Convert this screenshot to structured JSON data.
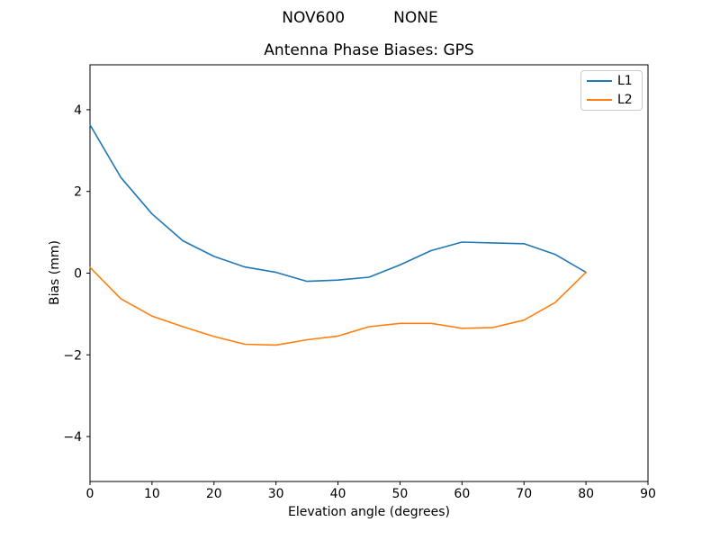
{
  "figure": {
    "suptitle": "NOV600          NONE"
  },
  "chart_data": {
    "type": "line",
    "title": "Antenna Phase Biases: GPS",
    "xlabel": "Elevation angle (degrees)",
    "ylabel": "Bias (mm)",
    "xlim": [
      0,
      90
    ],
    "ylim": [
      -5.1,
      5.1
    ],
    "xticks": [
      0,
      10,
      20,
      30,
      40,
      50,
      60,
      70,
      80,
      90
    ],
    "yticks": [
      -4,
      -2,
      0,
      2,
      4
    ],
    "grid": false,
    "legend_position": "upper right",
    "x": [
      0,
      5,
      10,
      15,
      20,
      25,
      30,
      35,
      40,
      45,
      50,
      55,
      60,
      65,
      70,
      75,
      80
    ],
    "series": [
      {
        "name": "L1",
        "color": "#1f77b4",
        "values": [
          3.63,
          2.34,
          1.45,
          0.79,
          0.41,
          0.15,
          0.02,
          -0.2,
          -0.17,
          -0.1,
          0.2,
          0.55,
          0.76,
          0.74,
          0.72,
          0.46,
          0.02
        ]
      },
      {
        "name": "L2",
        "color": "#ff7f0e",
        "values": [
          0.14,
          -0.63,
          -1.05,
          -1.31,
          -1.55,
          -1.74,
          -1.76,
          -1.63,
          -1.54,
          -1.31,
          -1.23,
          -1.23,
          -1.35,
          -1.33,
          -1.15,
          -0.72,
          0.02
        ]
      }
    ]
  }
}
